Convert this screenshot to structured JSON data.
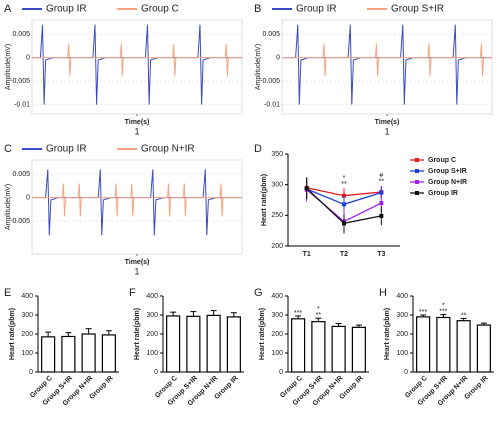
{
  "chart_data": [
    {
      "type": "line",
      "panel": "A",
      "ylabel": "Amplitude(mV)",
      "xlabel": "Time(s)",
      "xlim": [
        0,
        2
      ],
      "xticks": [
        1
      ],
      "ylim": [
        -0.012,
        0.008
      ],
      "yticks": [
        0.005,
        0,
        -0.005,
        -0.01
      ],
      "grid": true,
      "series": [
        {
          "name": "Group IR",
          "color": "#3b4cc0",
          "x": [
            0,
            0.08,
            0.1,
            0.115,
            0.13,
            0.2,
            0.58,
            0.6,
            0.615,
            0.63,
            0.7,
            1.08,
            1.1,
            1.115,
            1.13,
            1.2,
            1.58,
            1.6,
            1.615,
            1.63,
            1.7,
            2
          ],
          "values": [
            0,
            0,
            0.007,
            -0.01,
            -0.0005,
            0,
            0,
            0.007,
            -0.01,
            -0.0005,
            0,
            0,
            0.007,
            -0.01,
            -0.0005,
            0,
            0,
            0.007,
            -0.01,
            -0.0005,
            0,
            0
          ]
        },
        {
          "name": "Group C",
          "color": "#f4a582",
          "x": [
            0,
            0.34,
            0.35,
            0.36,
            0.37,
            0.84,
            0.85,
            0.86,
            0.87,
            1.34,
            1.35,
            1.36,
            1.37,
            1.84,
            1.85,
            1.86,
            1.87,
            2
          ],
          "values": [
            0,
            0,
            0.003,
            -0.004,
            0,
            0,
            0.003,
            -0.004,
            0,
            0,
            0.003,
            -0.004,
            0,
            0,
            0.003,
            -0.004,
            0,
            0
          ]
        }
      ]
    },
    {
      "type": "line",
      "panel": "B",
      "ylabel": "Amplitude(mV)",
      "xlabel": "Time(s)",
      "xlim": [
        0,
        2
      ],
      "xticks": [
        1
      ],
      "ylim": [
        -0.012,
        0.008
      ],
      "yticks": [
        0.005,
        0,
        -0.005,
        -0.01
      ],
      "grid": true,
      "series": [
        {
          "name": "Group IR",
          "color": "#3b4cc0",
          "x": [
            0,
            0.13,
            0.15,
            0.165,
            0.18,
            0.25,
            0.63,
            0.65,
            0.665,
            0.68,
            0.75,
            1.13,
            1.15,
            1.165,
            1.18,
            1.25,
            1.63,
            1.65,
            1.665,
            1.68,
            1.75,
            2
          ],
          "values": [
            0,
            0,
            0.007,
            -0.01,
            -0.0005,
            0,
            0,
            0.007,
            -0.01,
            -0.0005,
            0,
            0,
            0.007,
            -0.01,
            -0.0005,
            0,
            0,
            0.007,
            -0.01,
            -0.0005,
            0,
            0
          ]
        },
        {
          "name": "Group S+IR",
          "color": "#f4a582",
          "x": [
            0,
            0.39,
            0.4,
            0.41,
            0.42,
            0.89,
            0.9,
            0.91,
            0.92,
            1.39,
            1.4,
            1.41,
            1.42,
            1.89,
            1.9,
            1.91,
            1.92,
            2
          ],
          "values": [
            0,
            0,
            0.003,
            -0.004,
            0,
            0,
            0.003,
            -0.004,
            0,
            0,
            0.003,
            -0.004,
            0,
            0,
            0.003,
            -0.004,
            0,
            0
          ]
        }
      ]
    },
    {
      "type": "line",
      "panel": "C",
      "ylabel": "Amplitude(mV)",
      "xlabel": "Time(s)",
      "xlim": [
        0,
        2
      ],
      "xticks": [
        1
      ],
      "ylim": [
        -0.012,
        0.008
      ],
      "yticks": [
        0.005,
        0,
        -0.005
      ],
      "grid": true,
      "series": [
        {
          "name": "Group IR",
          "color": "#3b4cc0",
          "x": [
            0,
            0.13,
            0.15,
            0.165,
            0.18,
            0.25,
            0.63,
            0.65,
            0.665,
            0.68,
            0.75,
            1.13,
            1.15,
            1.165,
            1.18,
            1.25,
            1.63,
            1.65,
            1.665,
            1.68,
            1.75,
            2
          ],
          "values": [
            0,
            0,
            0.006,
            -0.008,
            -0.0005,
            0,
            0,
            0.006,
            -0.008,
            -0.0005,
            0,
            0,
            0.006,
            -0.008,
            -0.0005,
            0,
            0,
            0.006,
            -0.008,
            -0.0005,
            0,
            0
          ]
        },
        {
          "name": "Group N+IR",
          "color": "#f4a582",
          "x": [
            0,
            0.29,
            0.3,
            0.31,
            0.32,
            0.44,
            0.45,
            0.46,
            0.47,
            0.79,
            0.8,
            0.81,
            0.82,
            0.94,
            0.95,
            0.96,
            0.97,
            1.29,
            1.3,
            1.31,
            1.32,
            1.44,
            1.45,
            1.46,
            1.47,
            1.79,
            1.8,
            1.81,
            1.82,
            2
          ],
          "values": [
            0,
            0,
            0.003,
            -0.004,
            0,
            0,
            0.003,
            -0.004,
            0,
            0,
            0.003,
            -0.004,
            0,
            0,
            0.003,
            -0.004,
            0,
            0,
            0.003,
            -0.004,
            0,
            0,
            0.003,
            -0.004,
            0,
            0,
            0.003,
            -0.004,
            0,
            0
          ]
        }
      ]
    },
    {
      "type": "line",
      "panel": "D",
      "ylabel": "Heart rate(pbm)",
      "categories": [
        "T1",
        "T2",
        "T3"
      ],
      "ylim": [
        200,
        350
      ],
      "yticks": [
        200,
        250,
        300,
        350
      ],
      "series": [
        {
          "name": "Group C",
          "color": "#e41a1c",
          "values": [
            295,
            282,
            288
          ],
          "errors": [
            15,
            12,
            10
          ]
        },
        {
          "name": "Group S+IR",
          "color": "#1f3fd6",
          "values": [
            293,
            268,
            287
          ],
          "errors": [
            12,
            15,
            10
          ]
        },
        {
          "name": "Group N+IR",
          "color": "#a020f0",
          "values": [
            292,
            240,
            270
          ],
          "errors": [
            20,
            20,
            15
          ]
        },
        {
          "name": "Group IR",
          "color": "#111111",
          "values": [
            294,
            237,
            249
          ],
          "errors": [
            18,
            15,
            15
          ]
        }
      ],
      "annotations": [
        null,
        [
          "*",
          "**"
        ],
        [
          "#",
          "**"
        ]
      ]
    },
    {
      "type": "bar",
      "panel": "E",
      "ylabel": "Heart rate(pbm)",
      "categories": [
        "Group C",
        "Group S+IR",
        "Group N+IR",
        "Group IR"
      ],
      "values": [
        185,
        187,
        200,
        195
      ],
      "errors": [
        25,
        20,
        28,
        22
      ],
      "ylim": [
        0,
        400
      ],
      "yticks": [
        0,
        100,
        200,
        300,
        400
      ],
      "annotations": [
        null,
        null,
        null,
        null
      ]
    },
    {
      "type": "bar",
      "panel": "F",
      "ylabel": "Heart rate(pbm)",
      "categories": [
        "Group C",
        "Group S+IR",
        "Group N+IR",
        "Group IR"
      ],
      "values": [
        295,
        293,
        298,
        290
      ],
      "errors": [
        20,
        25,
        25,
        22
      ],
      "ylim": [
        0,
        400
      ],
      "yticks": [
        0,
        100,
        200,
        300,
        400
      ],
      "annotations": [
        null,
        null,
        null,
        null
      ]
    },
    {
      "type": "bar",
      "panel": "G",
      "ylabel": "Heart rate(pbm)",
      "categories": [
        "Group C",
        "Group S+IR",
        "Group N+IR",
        "Group IR"
      ],
      "values": [
        280,
        265,
        240,
        235
      ],
      "errors": [
        15,
        18,
        15,
        12
      ],
      "ylim": [
        0,
        400
      ],
      "yticks": [
        0,
        100,
        200,
        300,
        400
      ],
      "annotations": [
        [
          "***"
        ],
        [
          "*",
          "**"
        ],
        null,
        null
      ]
    },
    {
      "type": "bar",
      "panel": "H",
      "ylabel": "Heart rate(pbm)",
      "categories": [
        "Group C",
        "Group S+IR",
        "Group N+IR",
        "Group IR"
      ],
      "values": [
        290,
        287,
        270,
        247
      ],
      "errors": [
        10,
        15,
        12,
        10
      ],
      "ylim": [
        0,
        400
      ],
      "yticks": [
        0,
        100,
        200,
        300,
        400
      ],
      "annotations": [
        [
          "***"
        ],
        [
          "*",
          "***"
        ],
        [
          "**"
        ],
        null
      ]
    }
  ]
}
